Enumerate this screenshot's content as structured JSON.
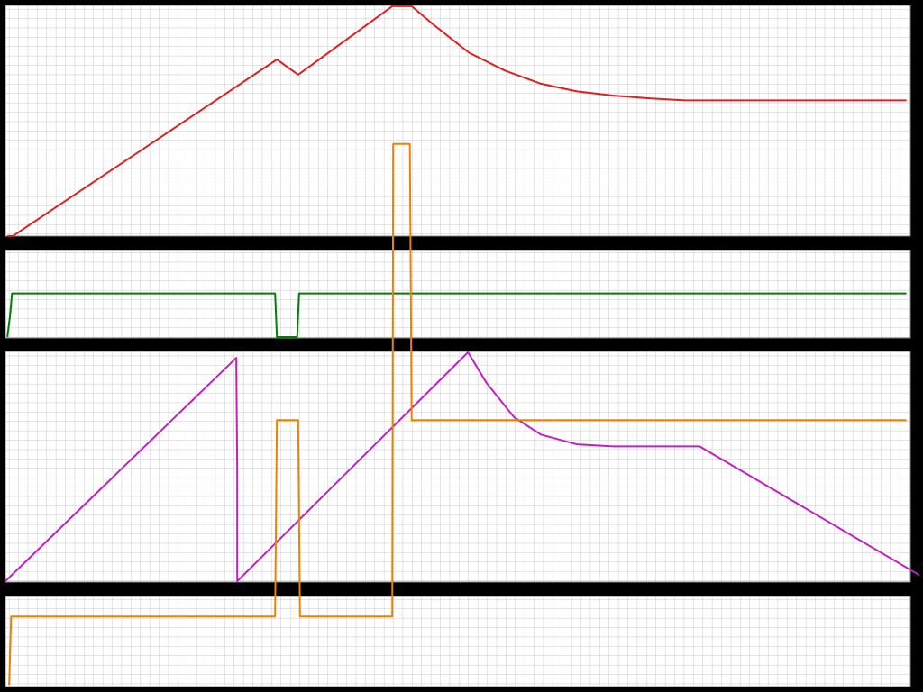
{
  "chart_data": {
    "type": "line",
    "xlim": [
      0,
      100
    ],
    "ylim": [
      0,
      100
    ],
    "series": [
      {
        "color": "#e02020",
        "x": [
          0.8,
          1.4,
          30.0,
          32.3,
          42.5,
          44.6,
          46.9,
          50.8,
          54.7,
          58.6,
          62.5,
          66.4,
          70.3,
          74.2,
          98.2
        ],
        "values": [
          65.9,
          65.9,
          91.4,
          89.2,
          99.1,
          99.1,
          96.5,
          92.4,
          89.8,
          87.9,
          86.8,
          86.2,
          85.8,
          85.5,
          85.5
        ]
      },
      {
        "color": "#008000",
        "x": [
          0.8,
          1.1,
          1.3,
          29.8,
          30.0,
          32.2,
          32.4,
          98.2
        ],
        "values": [
          51.3,
          54.6,
          57.6,
          57.6,
          51.3,
          51.3,
          57.6,
          57.6
        ]
      },
      {
        "color": "#c020c0",
        "x": [
          0.5,
          25.6,
          25.7,
          25.7,
          50.7,
          52.7,
          55.7,
          58.6,
          62.5,
          66.4,
          75.8,
          99.6
        ],
        "values": [
          15.9,
          48.3,
          32.0,
          16.0,
          49.1,
          44.7,
          39.7,
          37.2,
          35.8,
          35.5,
          35.5,
          16.9
        ]
      },
      {
        "color": "#f08000",
        "x": [
          1.0,
          1.2,
          29.8,
          30.0,
          32.3,
          32.5,
          42.5,
          42.6,
          44.4,
          44.6,
          98.2
        ],
        "values": [
          1.0,
          10.9,
          10.9,
          39.3,
          39.3,
          10.9,
          10.9,
          79.2,
          79.2,
          39.3,
          39.3
        ]
      }
    ]
  }
}
